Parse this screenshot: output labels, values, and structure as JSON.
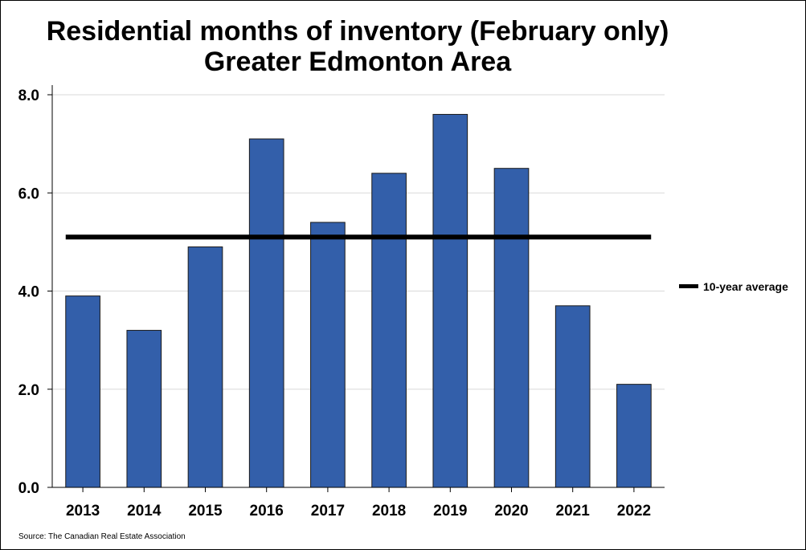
{
  "chart_data": {
    "type": "bar",
    "title": "Residential months of inventory (February only)",
    "subtitle": "Greater Edmonton Area",
    "categories": [
      "2013",
      "2014",
      "2015",
      "2016",
      "2017",
      "2018",
      "2019",
      "2020",
      "2021",
      "2022"
    ],
    "series": [
      {
        "values": [
          3.9,
          3.2,
          4.9,
          7.1,
          5.4,
          6.4,
          7.6,
          6.5,
          3.7,
          2.1
        ],
        "color": "#335FAA"
      }
    ],
    "reference_lines": [
      {
        "name": "10-year average",
        "value": 5.1,
        "color": "#000000"
      }
    ],
    "xlabel": "",
    "ylabel": "",
    "ylim": [
      0,
      8
    ],
    "yticks": [
      "0.0",
      "2.0",
      "4.0",
      "6.0",
      "8.0"
    ],
    "grid": true,
    "legend_position": "right",
    "source": "Source: The Canadian Real Estate Association"
  }
}
